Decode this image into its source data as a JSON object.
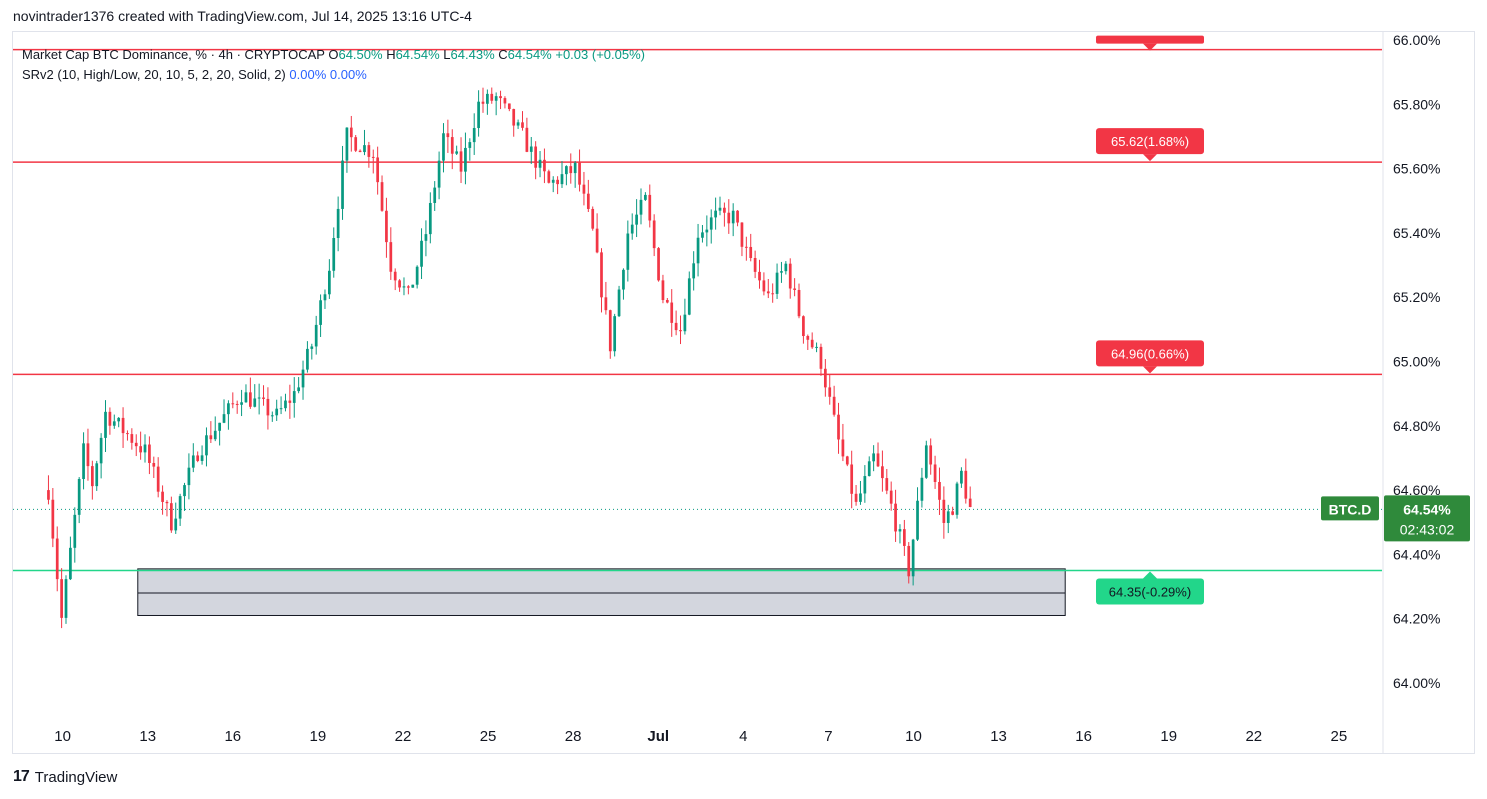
{
  "header": {
    "title": "novintrader1376 created with TradingView.com, Jul 14, 2025 13:16 UTC-4"
  },
  "legend": {
    "line1": {
      "name": "Market Cap BTC Dominance, % · 4h · CRYPTOCAP",
      "o_label": "O",
      "o": "64.50%",
      "h_label": "H",
      "h": "64.54%",
      "l_label": "L",
      "l": "64.43%",
      "c_label": "C",
      "c": "64.54%",
      "change": "+0.03 (+0.05%)"
    },
    "line2": {
      "name": "SRv2 (10, High/Low, 20, 10, 5, 2, 20, Solid, 2)",
      "v1": "0.00%",
      "v2": "0.00%"
    }
  },
  "footer": {
    "logo_mark": "17",
    "logo_text": "TradingView"
  },
  "colors": {
    "up": "#089981",
    "down": "#f23645",
    "resistance": "#f23645",
    "support": "#22d68a",
    "zone_fill": "#d1d4dc"
  },
  "chart_data": {
    "type": "candlestick",
    "symbol": "BTC.D",
    "timeframe": "4h",
    "ylim": [
      63.9,
      66.05
    ],
    "ytick_labels": [
      "66.00%",
      "65.80%",
      "65.60%",
      "65.40%",
      "65.20%",
      "65.00%",
      "64.80%",
      "64.60%",
      "64.40%",
      "64.20%",
      "64.00%"
    ],
    "ytick_values": [
      66.0,
      65.8,
      65.6,
      65.4,
      65.2,
      65.0,
      64.8,
      64.6,
      64.4,
      64.2,
      64.0
    ],
    "xtick_labels": [
      "10",
      "13",
      "16",
      "19",
      "22",
      "25",
      "28",
      "Jul",
      "4",
      "7",
      "10",
      "13",
      "16",
      "19",
      "22",
      "25"
    ],
    "x_start_day": 9.5,
    "x_end_day": 42.0,
    "x_tick_days": [
      10,
      13,
      16,
      19,
      22,
      25,
      28,
      31,
      34,
      37,
      40,
      43,
      46,
      49,
      52,
      55
    ],
    "x_view_days": [
      8.25,
      56.52
    ],
    "last_price": 64.54,
    "last_price_label": "64.54%",
    "countdown": "02:43:02",
    "price_tag": "BTC.D",
    "path": [
      [
        0,
        64.6
      ],
      [
        3,
        64.2
      ],
      [
        8,
        64.72
      ],
      [
        10,
        64.62
      ],
      [
        13,
        64.84
      ],
      [
        22,
        64.72
      ],
      [
        28,
        64.5
      ],
      [
        34,
        64.72
      ],
      [
        44,
        64.9
      ],
      [
        52,
        64.83
      ],
      [
        56,
        64.9
      ],
      [
        60,
        65.05
      ],
      [
        64,
        65.3
      ],
      [
        68,
        65.7
      ],
      [
        74,
        65.65
      ],
      [
        78,
        65.3
      ],
      [
        82,
        65.2
      ],
      [
        86,
        65.4
      ],
      [
        90,
        65.7
      ],
      [
        94,
        65.6
      ],
      [
        98,
        65.8
      ],
      [
        102,
        65.82
      ],
      [
        108,
        65.7
      ],
      [
        114,
        65.55
      ],
      [
        120,
        65.6
      ],
      [
        124,
        65.4
      ],
      [
        128,
        65.05
      ],
      [
        132,
        65.4
      ],
      [
        136,
        65.5
      ],
      [
        140,
        65.2
      ],
      [
        144,
        65.1
      ],
      [
        148,
        65.4
      ],
      [
        152,
        65.45
      ],
      [
        156,
        65.45
      ],
      [
        160,
        65.3
      ],
      [
        164,
        65.2
      ],
      [
        168,
        65.3
      ],
      [
        172,
        65.1
      ],
      [
        176,
        65.0
      ],
      [
        180,
        64.75
      ],
      [
        184,
        64.55
      ],
      [
        188,
        64.7
      ],
      [
        192,
        64.55
      ],
      [
        196,
        64.35
      ],
      [
        200,
        64.75
      ],
      [
        204,
        64.5
      ],
      [
        206,
        64.55
      ],
      [
        208,
        64.65
      ],
      [
        210,
        64.54
      ]
    ]
  },
  "overlay": {
    "resistance_levels": [
      {
        "price": 65.97,
        "label": ""
      },
      {
        "price": 65.62,
        "label": "65.62(1.68%)"
      },
      {
        "price": 64.96,
        "label": "64.96(0.66%)"
      }
    ],
    "support_level": {
      "price": 64.35,
      "label": "64.35(-0.29%)"
    },
    "zone": {
      "top": 64.355,
      "bottom": 64.21,
      "mid": 64.28,
      "start_day": 12.65,
      "end_day": 45.35
    }
  }
}
